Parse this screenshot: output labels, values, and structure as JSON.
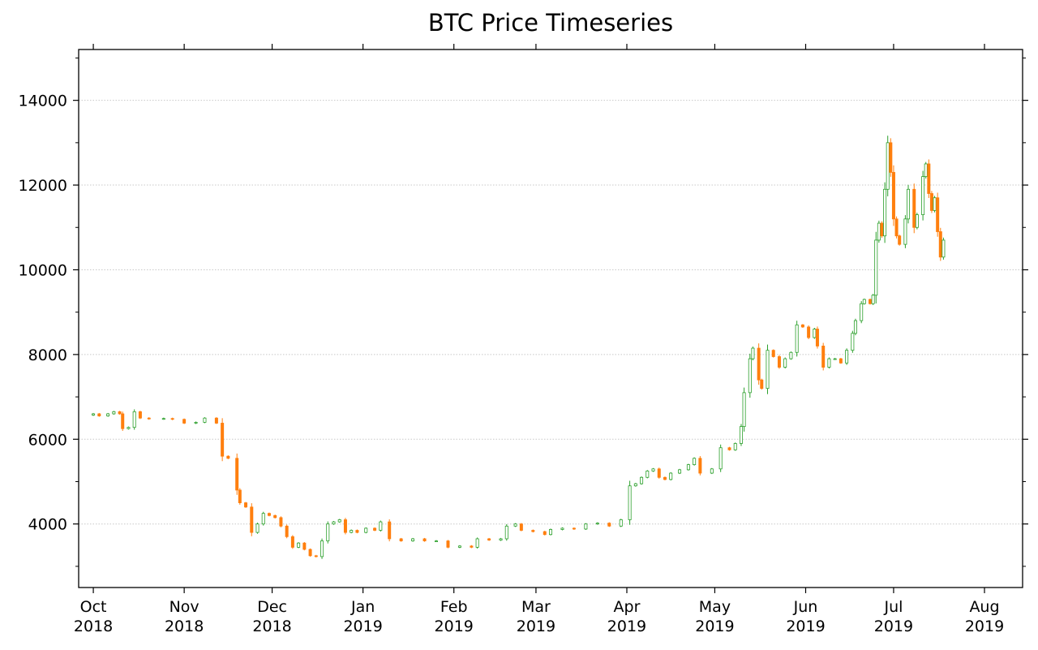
{
  "chart_data": {
    "type": "candlestick",
    "title": "BTC Price Timeseries",
    "xlabel": "",
    "ylabel": "",
    "ylim": [
      2500,
      15200
    ],
    "yticks": [
      4000,
      6000,
      8000,
      10000,
      12000,
      14000
    ],
    "xticks": [
      {
        "date": "2018-10-01",
        "month": "Oct",
        "year": "2018"
      },
      {
        "date": "2018-11-01",
        "month": "Nov",
        "year": "2018"
      },
      {
        "date": "2018-12-01",
        "month": "Dec",
        "year": "2018"
      },
      {
        "date": "2019-01-01",
        "month": "Jan",
        "year": "2019"
      },
      {
        "date": "2019-02-01",
        "month": "Feb",
        "year": "2019"
      },
      {
        "date": "2019-03-01",
        "month": "Mar",
        "year": "2019"
      },
      {
        "date": "2019-04-01",
        "month": "Apr",
        "year": "2019"
      },
      {
        "date": "2019-05-01",
        "month": "May",
        "year": "2019"
      },
      {
        "date": "2019-06-01",
        "month": "Jun",
        "year": "2019"
      },
      {
        "date": "2019-07-01",
        "month": "Jul",
        "year": "2019"
      },
      {
        "date": "2019-08-01",
        "month": "Aug",
        "year": "2019"
      }
    ],
    "grid": "horizontal dotted",
    "colors": {
      "up": "#2ca02c",
      "down": "#ff7f0e",
      "grid": "#c8c8c8",
      "axis": "#000000"
    },
    "x_range": [
      "2018-09-26",
      "2019-08-14"
    ],
    "closes": [
      [
        "2018-10-01",
        6600
      ],
      [
        "2018-10-03",
        6550
      ],
      [
        "2018-10-06",
        6600
      ],
      [
        "2018-10-08",
        6650
      ],
      [
        "2018-10-10",
        6600
      ],
      [
        "2018-10-11",
        6250
      ],
      [
        "2018-10-13",
        6280
      ],
      [
        "2018-10-15",
        6650
      ],
      [
        "2018-10-17",
        6500
      ],
      [
        "2018-10-20",
        6480
      ],
      [
        "2018-10-25",
        6490
      ],
      [
        "2018-10-28",
        6470
      ],
      [
        "2018-11-01",
        6380
      ],
      [
        "2018-11-05",
        6400
      ],
      [
        "2018-11-08",
        6500
      ],
      [
        "2018-11-12",
        6380
      ],
      [
        "2018-11-14",
        5600
      ],
      [
        "2018-11-16",
        5550
      ],
      [
        "2018-11-19",
        4800
      ],
      [
        "2018-11-20",
        4500
      ],
      [
        "2018-11-22",
        4400
      ],
      [
        "2018-11-24",
        3800
      ],
      [
        "2018-11-26",
        4000
      ],
      [
        "2018-11-28",
        4250
      ],
      [
        "2018-11-30",
        4200
      ],
      [
        "2018-12-02",
        4150
      ],
      [
        "2018-12-04",
        3950
      ],
      [
        "2018-12-06",
        3700
      ],
      [
        "2018-12-08",
        3450
      ],
      [
        "2018-12-10",
        3550
      ],
      [
        "2018-12-12",
        3400
      ],
      [
        "2018-12-14",
        3250
      ],
      [
        "2018-12-16",
        3230
      ],
      [
        "2018-12-18",
        3600
      ],
      [
        "2018-12-20",
        4000
      ],
      [
        "2018-12-22",
        4050
      ],
      [
        "2018-12-24",
        4100
      ],
      [
        "2018-12-26",
        3800
      ],
      [
        "2018-12-28",
        3850
      ],
      [
        "2018-12-30",
        3800
      ],
      [
        "2019-01-02",
        3900
      ],
      [
        "2019-01-05",
        3850
      ],
      [
        "2019-01-07",
        4050
      ],
      [
        "2019-01-10",
        3650
      ],
      [
        "2019-01-14",
        3600
      ],
      [
        "2019-01-18",
        3650
      ],
      [
        "2019-01-22",
        3600
      ],
      [
        "2019-01-26",
        3600
      ],
      [
        "2019-01-30",
        3450
      ],
      [
        "2019-02-03",
        3480
      ],
      [
        "2019-02-07",
        3450
      ],
      [
        "2019-02-09",
        3650
      ],
      [
        "2019-02-13",
        3620
      ],
      [
        "2019-02-17",
        3650
      ],
      [
        "2019-02-19",
        3950
      ],
      [
        "2019-02-22",
        4000
      ],
      [
        "2019-02-24",
        3850
      ],
      [
        "2019-02-28",
        3820
      ],
      [
        "2019-03-04",
        3750
      ],
      [
        "2019-03-06",
        3870
      ],
      [
        "2019-03-10",
        3900
      ],
      [
        "2019-03-14",
        3880
      ],
      [
        "2019-03-18",
        4000
      ],
      [
        "2019-03-22",
        4020
      ],
      [
        "2019-03-26",
        3950
      ],
      [
        "2019-03-30",
        4100
      ],
      [
        "2019-04-02",
        4900
      ],
      [
        "2019-04-04",
        4950
      ],
      [
        "2019-04-06",
        5100
      ],
      [
        "2019-04-08",
        5250
      ],
      [
        "2019-04-10",
        5300
      ],
      [
        "2019-04-12",
        5100
      ],
      [
        "2019-04-14",
        5050
      ],
      [
        "2019-04-16",
        5200
      ],
      [
        "2019-04-19",
        5280
      ],
      [
        "2019-04-22",
        5400
      ],
      [
        "2019-04-24",
        5550
      ],
      [
        "2019-04-26",
        5200
      ],
      [
        "2019-04-30",
        5300
      ],
      [
        "2019-05-03",
        5800
      ],
      [
        "2019-05-06",
        5750
      ],
      [
        "2019-05-08",
        5900
      ],
      [
        "2019-05-10",
        6300
      ],
      [
        "2019-05-11",
        7100
      ],
      [
        "2019-05-13",
        7900
      ],
      [
        "2019-05-14",
        8150
      ],
      [
        "2019-05-16",
        7400
      ],
      [
        "2019-05-17",
        7200
      ],
      [
        "2019-05-19",
        8100
      ],
      [
        "2019-05-21",
        7950
      ],
      [
        "2019-05-23",
        7700
      ],
      [
        "2019-05-25",
        7900
      ],
      [
        "2019-05-27",
        8050
      ],
      [
        "2019-05-29",
        8700
      ],
      [
        "2019-05-31",
        8650
      ],
      [
        "2019-06-02",
        8400
      ],
      [
        "2019-06-04",
        8600
      ],
      [
        "2019-06-05",
        8200
      ],
      [
        "2019-06-07",
        7700
      ],
      [
        "2019-06-09",
        7900
      ],
      [
        "2019-06-11",
        7900
      ],
      [
        "2019-06-13",
        7800
      ],
      [
        "2019-06-15",
        8100
      ],
      [
        "2019-06-17",
        8500
      ],
      [
        "2019-06-18",
        8800
      ],
      [
        "2019-06-20",
        9200
      ],
      [
        "2019-06-21",
        9300
      ],
      [
        "2019-06-23",
        9200
      ],
      [
        "2019-06-24",
        9400
      ],
      [
        "2019-06-25",
        10700
      ],
      [
        "2019-06-26",
        11100
      ],
      [
        "2019-06-27",
        10800
      ],
      [
        "2019-06-28",
        11900
      ],
      [
        "2019-06-29",
        13000
      ],
      [
        "2019-06-30",
        12300
      ],
      [
        "2019-07-01",
        11200
      ],
      [
        "2019-07-02",
        10800
      ],
      [
        "2019-07-03",
        10600
      ],
      [
        "2019-07-05",
        11200
      ],
      [
        "2019-07-06",
        11900
      ],
      [
        "2019-07-08",
        11000
      ],
      [
        "2019-07-09",
        11300
      ],
      [
        "2019-07-11",
        12200
      ],
      [
        "2019-07-12",
        12500
      ],
      [
        "2019-07-13",
        11800
      ],
      [
        "2019-07-14",
        11400
      ],
      [
        "2019-07-15",
        11700
      ],
      [
        "2019-07-16",
        10900
      ],
      [
        "2019-07-17",
        10300
      ],
      [
        "2019-07-18",
        10700
      ]
    ]
  }
}
